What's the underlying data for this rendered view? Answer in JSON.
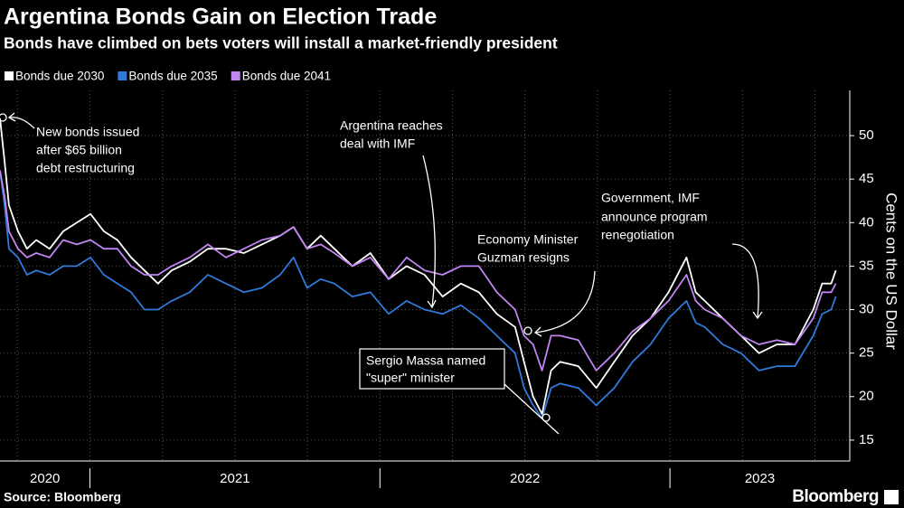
{
  "chart_data": {
    "type": "line",
    "title": "Argentina Bonds Gain on Election Trade",
    "subtitle": "Bonds have climbed on bets voters will install a market-friendly president",
    "y_label": "Cents on the US Dollar",
    "source": "Source: Bloomberg",
    "brand": "Bloomberg",
    "x": [
      2020.69,
      2020.706,
      2020.721,
      2020.752,
      2020.783,
      2020.815,
      2020.861,
      2020.908,
      2020.955,
      2021.002,
      2021.048,
      2021.095,
      2021.142,
      2021.188,
      2021.235,
      2021.282,
      2021.344,
      2021.407,
      2021.469,
      2021.531,
      2021.593,
      2021.656,
      2021.702,
      2021.749,
      2021.796,
      2021.843,
      2021.905,
      2021.967,
      2022.03,
      2022.092,
      2022.154,
      2022.216,
      2022.279,
      2022.341,
      2022.403,
      2022.466,
      2022.497,
      2022.528,
      2022.559,
      2022.59,
      2022.621,
      2022.684,
      2022.746,
      2022.808,
      2022.871,
      2022.933,
      2022.995,
      2023.057,
      2023.089,
      2023.12,
      2023.182,
      2023.245,
      2023.307,
      2023.369,
      2023.431,
      2023.494,
      2023.525,
      2023.556,
      2023.572
    ],
    "series": [
      {
        "name": "Bonds due 2030",
        "color": "#ffffff",
        "values": [
          52,
          47,
          42,
          39,
          37,
          38,
          37,
          39,
          40,
          41,
          39,
          38,
          36,
          34.5,
          33,
          34.5,
          35.5,
          37,
          37,
          36.5,
          37.5,
          38.5,
          39.5,
          37,
          38.5,
          37,
          35,
          36.5,
          33.5,
          35,
          34,
          31.5,
          33,
          32,
          29.5,
          28,
          24,
          20,
          18,
          23,
          24,
          23.5,
          21,
          24,
          27,
          29,
          32,
          36,
          32,
          31,
          29,
          27,
          25,
          26,
          26,
          30,
          33,
          33,
          34.5
        ]
      },
      {
        "name": "Bonds due 2035",
        "color": "#2f7ad9",
        "values": [
          46,
          42,
          37,
          36,
          34,
          34.5,
          34,
          35,
          35,
          36,
          34,
          33,
          32,
          30,
          30,
          31,
          32,
          34,
          33,
          32,
          32.5,
          34,
          36,
          32.5,
          33.5,
          33,
          31.5,
          32,
          29.5,
          31,
          30,
          29.5,
          30.5,
          29,
          27,
          25,
          21,
          19,
          17.5,
          21,
          21.5,
          21,
          19,
          21,
          24,
          26,
          29,
          31,
          28.5,
          28,
          26,
          25,
          23,
          23.5,
          23.5,
          27,
          29.5,
          30,
          31.5
        ]
      },
      {
        "name": "Bonds due 2041",
        "color": "#c184f0",
        "values": [
          46,
          43,
          39,
          37,
          36,
          36.5,
          36,
          38,
          37.5,
          38,
          37,
          37,
          35,
          34,
          34,
          35,
          36,
          37.5,
          36,
          37,
          38,
          38.5,
          39.5,
          37,
          37.5,
          36.5,
          35,
          36,
          33.5,
          36,
          34.5,
          34,
          35,
          35,
          32,
          30,
          27,
          26,
          23,
          27,
          27,
          26.5,
          23,
          25,
          27.5,
          29,
          31,
          34,
          31,
          30,
          29,
          27,
          26,
          26.5,
          26,
          29,
          32,
          32,
          33
        ]
      }
    ],
    "xlim": [
      2020.69,
      2023.62
    ],
    "ylim": [
      12.6,
      55.2
    ],
    "yticks": [
      15,
      20,
      25,
      30,
      35,
      40,
      45,
      50
    ],
    "xgrid": [
      2020.75,
      2021,
      2021.25,
      2021.5,
      2021.75,
      2022,
      2022.25,
      2022.5,
      2022.75,
      2023,
      2023.25,
      2023.5
    ],
    "year_labels": [
      2020,
      2021,
      2022,
      2023
    ],
    "grid": true,
    "annotations": [
      {
        "lines": [
          "New bonds issued",
          "after $65 billion",
          "debt restructuring"
        ]
      },
      {
        "lines": [
          "Argentina reaches",
          "deal with IMF"
        ]
      },
      {
        "lines": [
          "Economy Minister",
          "Guzman resigns"
        ]
      },
      {
        "lines": [
          "Government, IMF",
          "announce program",
          "renegotiation"
        ]
      },
      {
        "lines": [
          "Sergio Massa named",
          "\"super\" minister"
        ]
      }
    ]
  }
}
